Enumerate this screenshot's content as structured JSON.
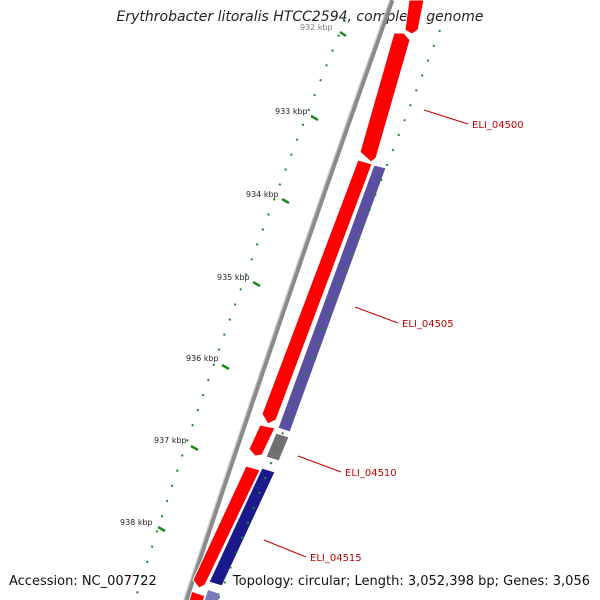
{
  "title": "Erythrobacter litoralis HTCC2594, complete genome",
  "footer": {
    "accession": "Accession: NC_007722",
    "topology": "Topology: circular; Length: 3,052,398 bp; Genes: 3,056"
  },
  "scale": {
    "tick_labels": [
      "932 kbp",
      "933 kbp",
      "934 kbp",
      "935 kbp",
      "936 kbp",
      "937 kbp",
      "938 kbp"
    ]
  },
  "genes": [
    {
      "label": "ELI_04500",
      "strand": "forward",
      "color": "#ff0000"
    },
    {
      "label": "ELI_04505",
      "strand": "reverse",
      "color": "#5a4fa0"
    },
    {
      "label": "ELI_04510",
      "strand": "reverse",
      "color": "#707070"
    },
    {
      "label": "ELI_04515",
      "strand": "reverse",
      "color": "#1a1a8c"
    }
  ],
  "colors": {
    "backbone": "#8a8a8a",
    "forward_gene": "#ff0000",
    "reverse_gene": "#5a4fa0",
    "pseudo_gene": "#707070",
    "reverse_gene_dark": "#1a1a8c",
    "gc_ticks": "#1f8a1f",
    "label_text": "#c00000"
  }
}
